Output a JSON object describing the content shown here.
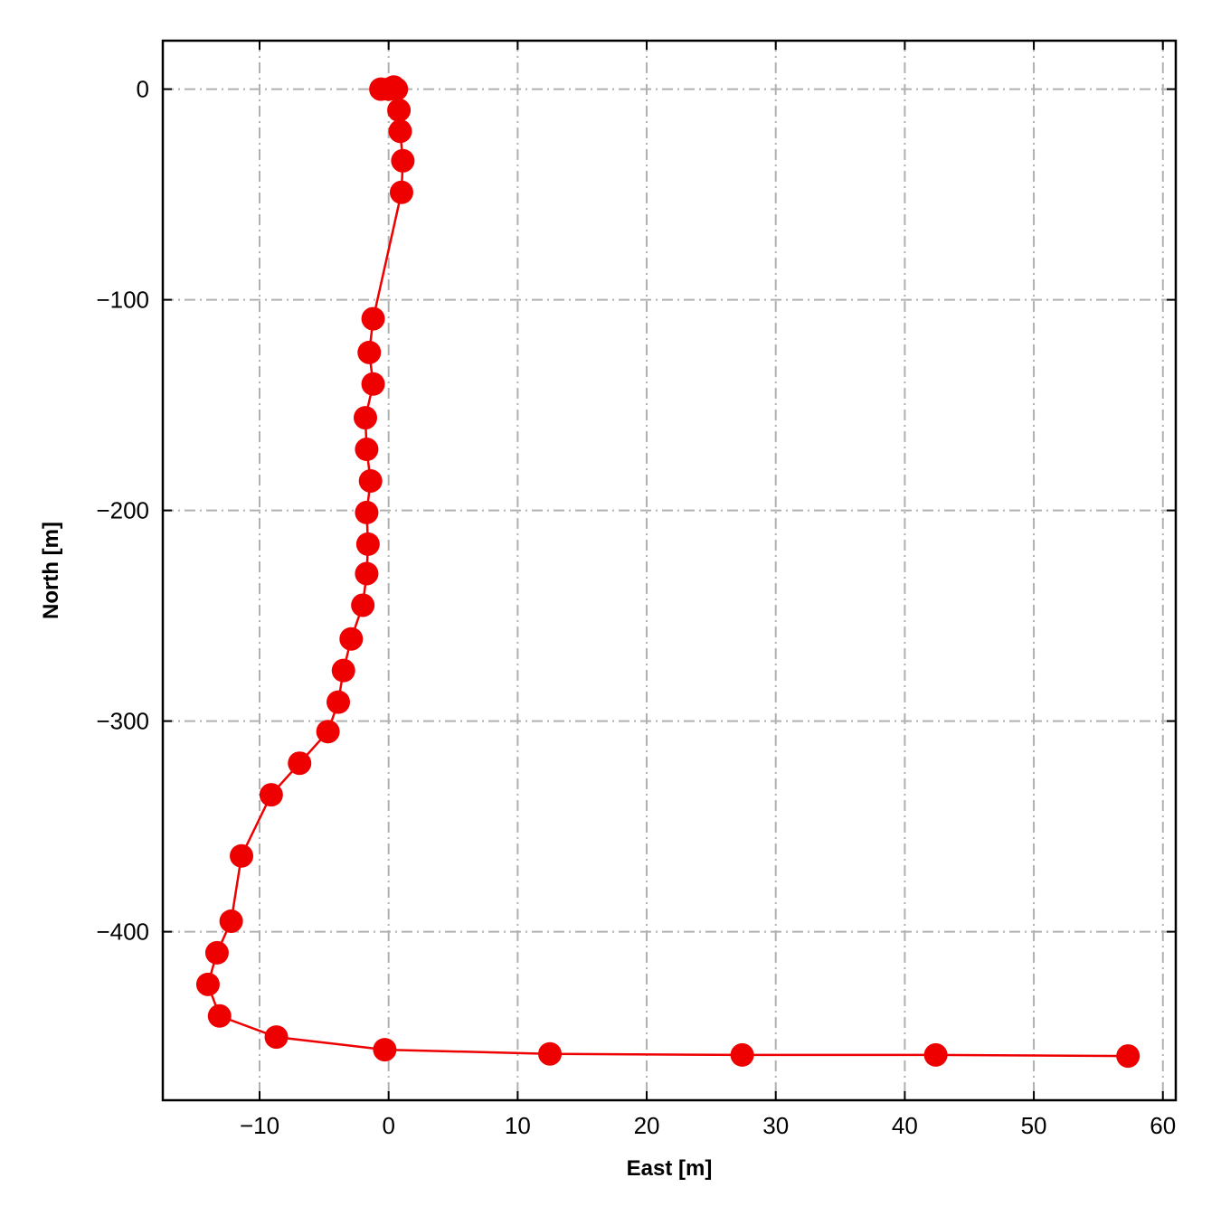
{
  "chart_data": {
    "type": "line",
    "title": "",
    "xlabel": "East [m]",
    "ylabel": "North [m]",
    "xlim": [
      -17.5,
      61
    ],
    "ylim": [
      -480,
      23
    ],
    "xticks": [
      -10,
      0,
      10,
      20,
      30,
      40,
      50,
      60
    ],
    "yticks": [
      0,
      -100,
      -200,
      -300,
      -400
    ],
    "xtick_labels": [
      "−10",
      "0",
      "10",
      "20",
      "30",
      "40",
      "50",
      "60"
    ],
    "ytick_labels": [
      "0",
      "−100",
      "−200",
      "−300",
      "−400"
    ],
    "grid": true,
    "grid_style": "dash-dot",
    "ticks_direction": "in",
    "color": "#ee0000",
    "series": [
      {
        "marker": "circle",
        "x": [
          -0.6,
          0.0,
          0.4,
          0.6,
          0.8,
          0.9,
          1.1,
          1.0,
          -1.2,
          -1.5,
          -1.2,
          -1.8,
          -1.7,
          -1.4,
          -1.7,
          -1.6,
          -1.7,
          -2.0,
          -2.9,
          -3.5,
          -3.9,
          -4.7,
          -6.9,
          -9.1,
          -11.4,
          -12.2,
          -13.3,
          -14.0,
          -13.1,
          -8.7,
          -0.3,
          12.5,
          27.4,
          42.4,
          57.3
        ],
        "y": [
          0,
          0,
          1,
          0,
          -10,
          -20,
          -34,
          -49,
          -109,
          -125,
          -140,
          -156,
          -171,
          -186,
          -201,
          -216,
          -230,
          -245,
          -261,
          -276,
          -291,
          -305,
          -320,
          -335,
          -364,
          -395,
          -410,
          -425,
          -440,
          -450,
          -456,
          -458,
          -458.5,
          -458.5,
          -459
        ]
      }
    ]
  }
}
